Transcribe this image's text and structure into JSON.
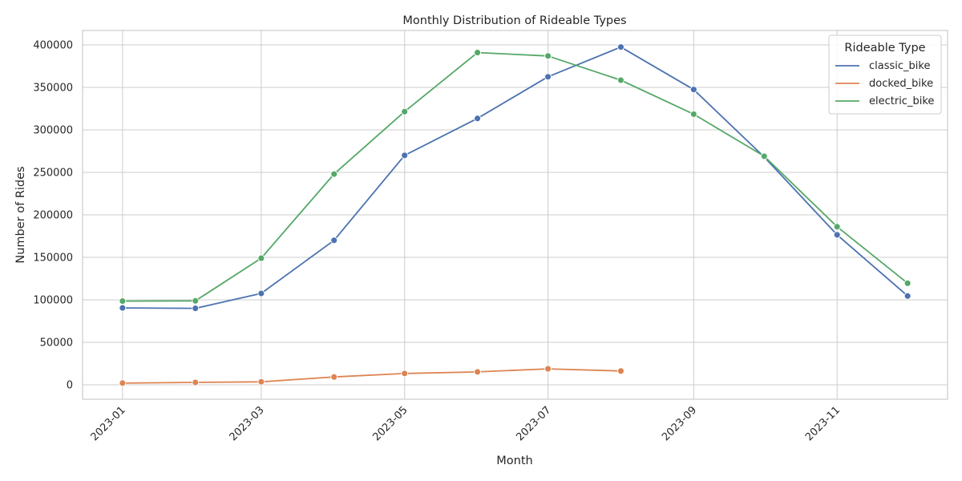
{
  "chart_data": {
    "type": "line",
    "title": "Monthly Distribution of Rideable Types",
    "xlabel": "Month",
    "ylabel": "Number of Rides",
    "x": [
      "2023-01-01",
      "2023-02-01",
      "2023-03-01",
      "2023-04-01",
      "2023-05-01",
      "2023-06-01",
      "2023-07-01",
      "2023-08-01",
      "2023-09-01",
      "2023-10-01",
      "2023-11-01",
      "2023-12-01"
    ],
    "xlim": [
      "2022-12-15",
      "2023-12-18"
    ],
    "ylim": [
      -17000,
      417000
    ],
    "x_tick_values": [
      "2023-01-01",
      "2023-03-01",
      "2023-05-01",
      "2023-07-01",
      "2023-09-01",
      "2023-11-01"
    ],
    "x_tick_labels": [
      "2023-01",
      "2023-03",
      "2023-05",
      "2023-07",
      "2023-09",
      "2023-11"
    ],
    "y_ticks": [
      0,
      50000,
      100000,
      150000,
      200000,
      250000,
      300000,
      350000,
      400000
    ],
    "grid": true,
    "legend": {
      "title": "Rideable Type",
      "placement": "top-right"
    },
    "series": [
      {
        "name": "classic_bike",
        "color": "#4c72b0",
        "values": [
          90500,
          90000,
          107500,
          170000,
          270000,
          313500,
          362500,
          397500,
          347500,
          268000,
          176500,
          104500
        ]
      },
      {
        "name": "docked_bike",
        "color": "#dd8452",
        "values": [
          2000,
          2800,
          3500,
          9200,
          13300,
          15200,
          18800,
          16200,
          null,
          null,
          null,
          null
        ]
      },
      {
        "name": "electric_bike",
        "color": "#55a868",
        "values": [
          98500,
          98800,
          149000,
          248000,
          321500,
          391000,
          387000,
          358500,
          318500,
          269000,
          186000,
          119500
        ]
      }
    ]
  }
}
